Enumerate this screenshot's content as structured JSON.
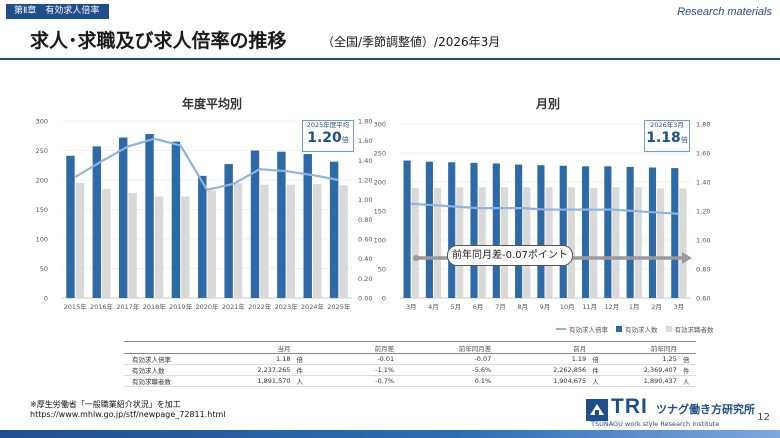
{
  "header": {
    "chapter_tag": "第Ⅱ章　有効求人倍率",
    "corner_label": "Research materials",
    "title": "求人･求職及び求人倍率の推移",
    "subtitle": "（全国/季節調整値）/2026年3月"
  },
  "chart_data": [
    {
      "type": "bar",
      "title": "年度平均別",
      "categories": [
        "2015年",
        "2016年",
        "2017年",
        "2018年",
        "2019年",
        "2020年",
        "2021年",
        "2022年",
        "2023年",
        "2024年",
        "2025年"
      ],
      "y_left_ticks": [
        "300",
        "250",
        "200",
        "150",
        "100",
        "50",
        "0"
      ],
      "y_right_ticks": [
        "1.80",
        "1.60",
        "1.40",
        "1.20",
        "1.00",
        "0.80",
        "0.60",
        "0.40",
        "0.20",
        "0.00"
      ],
      "ylim_left": [
        0,
        300
      ],
      "ylim_right": [
        0,
        1.8
      ],
      "series": [
        {
          "name": "有効求人数",
          "axis": "left",
          "values": [
            241,
            257,
            272,
            278,
            265,
            207,
            227,
            250,
            248,
            244,
            231
          ],
          "color": "#2e6aa8"
        },
        {
          "name": "有効求職者数",
          "axis": "left",
          "values": [
            195,
            185,
            178,
            172,
            172,
            182,
            195,
            192,
            192,
            193,
            191
          ],
          "color": "#d9d9d9"
        },
        {
          "name": "有効求人倍率",
          "axis": "right",
          "values": [
            1.23,
            1.39,
            1.54,
            1.62,
            1.55,
            1.1,
            1.16,
            1.31,
            1.29,
            1.25,
            1.2
          ],
          "color": "#8fb3df"
        }
      ],
      "callout": {
        "caption": "2025年度平均",
        "value": "1.20",
        "unit": "倍"
      }
    },
    {
      "type": "bar",
      "title": "月別",
      "categories": [
        "3月",
        "4月",
        "5月",
        "6月",
        "7月",
        "8月",
        "9月",
        "10月",
        "11月",
        "12月",
        "1月",
        "2月",
        "3月"
      ],
      "y_left_ticks": [
        "300",
        "250",
        "200",
        "150",
        "100",
        "50",
        "0"
      ],
      "y_right_ticks": [
        "1.80",
        "1.60",
        "1.40",
        "1.20",
        "1.00",
        "0.80",
        "0.60"
      ],
      "ylim_left": [
        0,
        300
      ],
      "ylim_right": [
        0.6,
        1.8
      ],
      "series": [
        {
          "name": "有効求人数",
          "axis": "left",
          "values": [
            237,
            235,
            234,
            233,
            232,
            230,
            229,
            228,
            227,
            227,
            226,
            225,
            224
          ],
          "color": "#2e6aa8"
        },
        {
          "name": "有効求職者数",
          "axis": "left",
          "values": [
            190,
            190,
            191,
            191,
            191,
            191,
            191,
            191,
            190,
            191,
            191,
            189,
            189
          ],
          "color": "#d9d9d9"
        },
        {
          "name": "有効求人倍率",
          "axis": "right",
          "values": [
            1.25,
            1.24,
            1.23,
            1.22,
            1.22,
            1.22,
            1.21,
            1.21,
            1.21,
            1.21,
            1.2,
            1.19,
            1.18
          ],
          "color": "#8fb3df"
        }
      ],
      "callout": {
        "caption": "2026年3月",
        "value": "1.18",
        "unit": "倍"
      },
      "annotation": "前年同月差-0.07ポイント"
    }
  ],
  "legend": [
    "有効求人倍率",
    "有効求人数",
    "有効求職者数"
  ],
  "table": {
    "headers": [
      "",
      "当月",
      "",
      "前月差",
      "前年同月差",
      "前月",
      "",
      "前年同月",
      ""
    ],
    "rows": [
      [
        "有効求人倍率",
        "1.18",
        "倍",
        "-0.01",
        "-0.07",
        "1.19",
        "倍",
        "1.25",
        "倍"
      ],
      [
        "有効求人数",
        "2,237,265",
        "件",
        "-1.1%",
        "-5.6%",
        "2,262,856",
        "件",
        "2,369,407",
        "件"
      ],
      [
        "有効求職者数",
        "1,891,570",
        "人",
        "-0.7%",
        "0.1%",
        "1,904,675",
        "人",
        "1,890,437",
        "人"
      ]
    ]
  },
  "footer": {
    "source_note": "※厚生労働省「一般職業紹介状況」を加工",
    "source_url": "https://www.mhlw.go.jp/stf/newpage_72811.html",
    "logo_text": "TRI",
    "logo_jp": "ツナグ働き方研究所",
    "logo_en": "TSUNAGU work style Research Institute",
    "page_number": "12"
  }
}
